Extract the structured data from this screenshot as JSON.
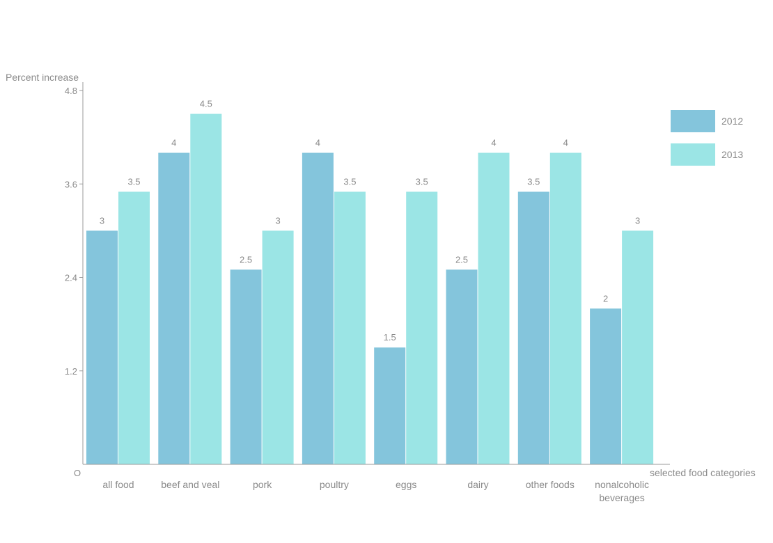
{
  "chart_data": {
    "type": "bar",
    "ylabel": "Percent increase",
    "xlabel": "selected food categories",
    "origin_label": "O",
    "ylim": [
      0,
      4.8
    ],
    "yticks": [
      "1.2",
      "2.4",
      "3.6",
      "4.8"
    ],
    "grid": false,
    "legend_position": "top-right",
    "categories": [
      [
        "all food"
      ],
      [
        "beef and veal"
      ],
      [
        "pork"
      ],
      [
        "poultry"
      ],
      [
        "eggs"
      ],
      [
        "dairy"
      ],
      [
        "other foods"
      ],
      [
        "nonalcoholic",
        "beverages"
      ]
    ],
    "series": [
      {
        "name": "2012",
        "color": "#84c5dc",
        "values": [
          3,
          4,
          2.5,
          4,
          1.5,
          2.5,
          3.5,
          2
        ],
        "labels": [
          "3",
          "4",
          "2.5",
          "4",
          "1.5",
          "2.5",
          "3.5",
          "2"
        ]
      },
      {
        "name": "2013",
        "color": "#9be5e5",
        "values": [
          3.5,
          4.5,
          3,
          3.5,
          3.5,
          4,
          4,
          3
        ],
        "labels": [
          "3.5",
          "4.5",
          "3",
          "3.5",
          "3.5",
          "4",
          "4",
          "3"
        ]
      }
    ]
  }
}
